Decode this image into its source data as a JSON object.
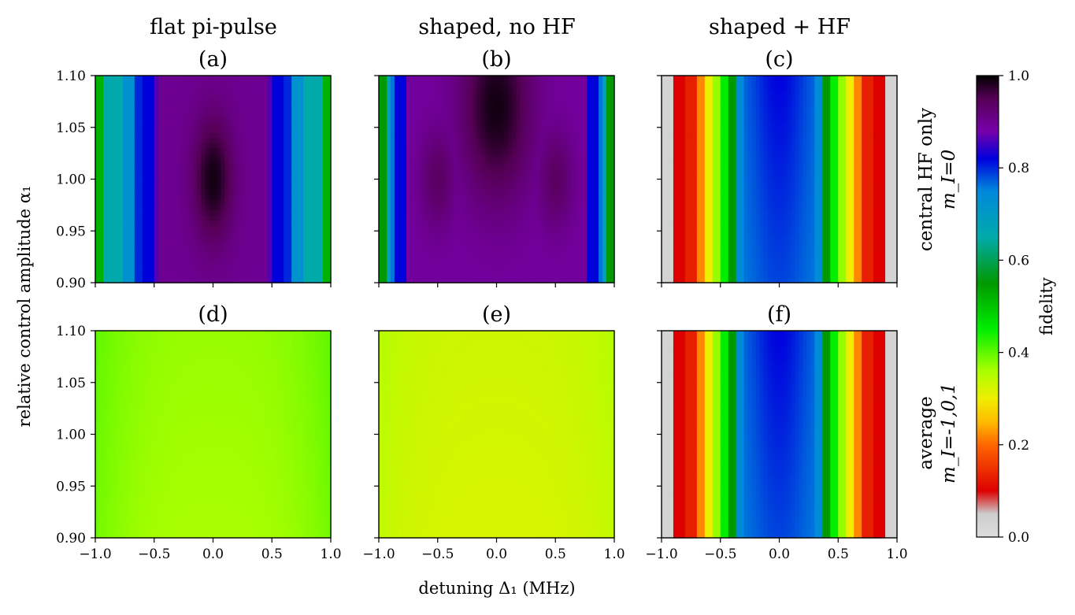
{
  "chart_data": {
    "type": "heatmap",
    "xlabel": "detuning Δ₁ (MHz)",
    "ylabel": "relative control amplitude α₁",
    "xlim": [
      -1.0,
      1.0
    ],
    "ylim": [
      0.9,
      1.1
    ],
    "x_ticks": [
      "−1.0",
      "−0.5",
      "0.0",
      "0.5",
      "1.0"
    ],
    "y_ticks": [
      "0.90",
      "0.95",
      "1.00",
      "1.05",
      "1.10"
    ],
    "column_titles": [
      "flat pi-pulse",
      "shaped, no HF",
      "shaped + HF"
    ],
    "row_labels": [
      [
        "central HF only",
        "m_I=0"
      ],
      [
        "average",
        "m_I=-1,0,1"
      ]
    ],
    "colorbar": {
      "label": "fidelity",
      "range": [
        0.0,
        1.0
      ],
      "ticks": [
        "0.0",
        "0.2",
        "0.4",
        "0.6",
        "0.8",
        "1.0"
      ],
      "colormap": "nipy_spectral_r"
    },
    "panels": [
      {
        "label": "(a)",
        "row": 0,
        "col": 0,
        "model": "flat",
        "center_fidelity": 0.99,
        "center_amplitude": 1.0,
        "edge_fidelity": 0.5
      },
      {
        "label": "(b)",
        "row": 0,
        "col": 1,
        "model": "shaped",
        "center_fidelity": 0.99,
        "center_amplitude": 1.07,
        "edge_fidelity": 0.5
      },
      {
        "label": "(c)",
        "row": 0,
        "col": 2,
        "model": "hf",
        "center_fidelity": 0.82,
        "edge_fidelity": 0.0
      },
      {
        "label": "(d)",
        "row": 1,
        "col": 0,
        "model": "avg",
        "center_fidelity": 0.37,
        "edge_fidelity": 0.4
      },
      {
        "label": "(e)",
        "row": 1,
        "col": 1,
        "model": "avg",
        "center_fidelity": 0.33,
        "edge_fidelity": 0.35
      },
      {
        "label": "(f)",
        "row": 1,
        "col": 2,
        "model": "hf",
        "center_fidelity": 0.82,
        "edge_fidelity": 0.0
      }
    ]
  }
}
